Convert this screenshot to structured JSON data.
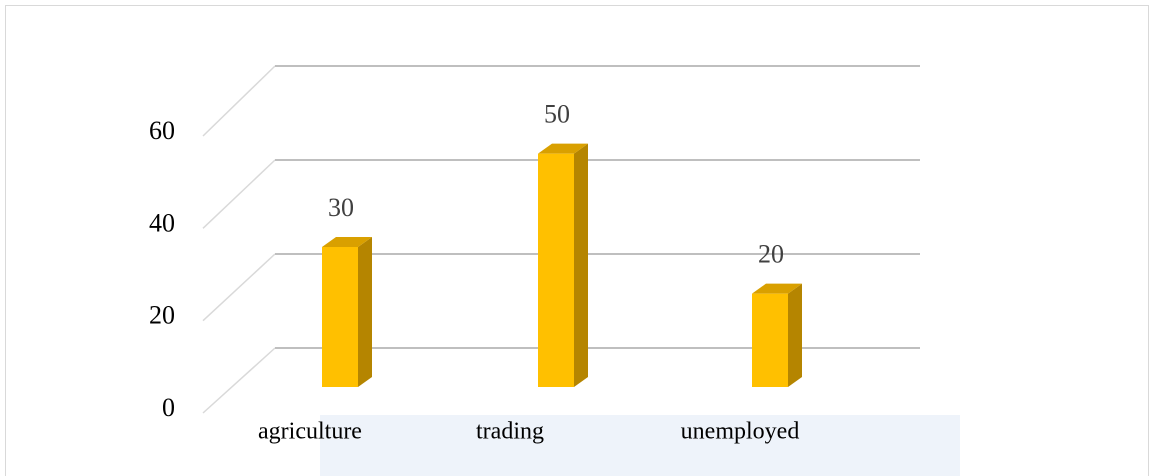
{
  "chart_data": {
    "type": "bar3d",
    "categories": [
      "agriculture",
      "trading",
      "unemployed"
    ],
    "values": [
      30,
      50,
      20
    ],
    "color": "#ffc000",
    "ylim": [
      0,
      60
    ],
    "yticks": [
      0,
      20,
      40,
      60
    ],
    "grid": true
  }
}
